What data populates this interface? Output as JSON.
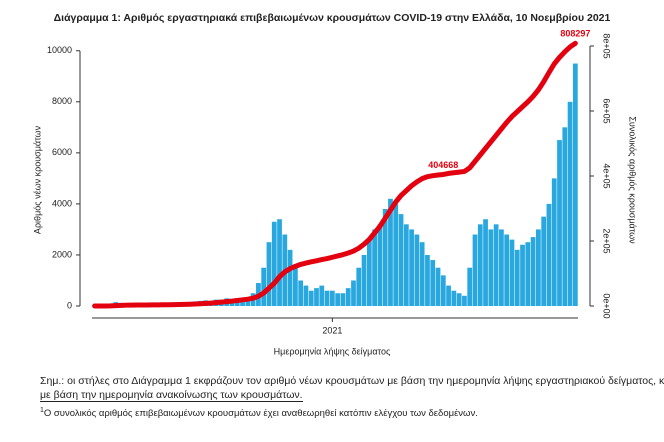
{
  "chart_data": {
    "type": "bar",
    "title": "Διάγραμμα 1: Αριθμός εργαστηριακά επιβεβαιωμένων κρουσμάτων COVID-19 στην Ελλάδα, 10 Νοεμβρίου 2021",
    "x_label": "Ημερομηνία λήψης δείγματος",
    "y_label": "Αριθμός νέων κρουσμάτων",
    "y2_label": "Συνολικός αριθμός κρουσμάτων",
    "categories": [
      null,
      null,
      null,
      null,
      null,
      null,
      null,
      null,
      null,
      null,
      null,
      null,
      null,
      null,
      null,
      null,
      null,
      null,
      null,
      null,
      null,
      null,
      null,
      null,
      null,
      null,
      null,
      null,
      null,
      null,
      null,
      null,
      null,
      null,
      null,
      null,
      null,
      null,
      null,
      null,
      null,
      null,
      null,
      null,
      null,
      null,
      null,
      null,
      null,
      null,
      null,
      null,
      null,
      null,
      null,
      null,
      null,
      null,
      null,
      null,
      null,
      null,
      null,
      null,
      null,
      null,
      null,
      null,
      null,
      null,
      null,
      null,
      null,
      null,
      null,
      null,
      null,
      null,
      null,
      null,
      null,
      null,
      null,
      null,
      null,
      null,
      null,
      null,
      null,
      null,
      null,
      null
    ],
    "xticks": [
      {
        "value": 45,
        "label": "2021"
      }
    ],
    "ylim": [
      0,
      10500
    ],
    "yticks": [
      0,
      2000,
      4000,
      6000,
      8000,
      10000
    ],
    "y2lim": [
      0,
      824600
    ],
    "y2ticks": [
      {
        "value": 0,
        "label": "0e+00"
      },
      {
        "value": 200000,
        "label": "2e+05"
      },
      {
        "value": 400000,
        "label": "4e+05"
      },
      {
        "value": 600000,
        "label": "6e+05"
      },
      {
        "value": 800000,
        "label": "8e+05"
      }
    ],
    "series": [
      {
        "type": "bar",
        "color": "#29a8e0",
        "values": [
          50,
          60,
          80,
          100,
          150,
          120,
          100,
          60,
          40,
          30,
          30,
          40,
          40,
          50,
          60,
          80,
          100,
          120,
          150,
          180,
          200,
          220,
          200,
          250,
          250,
          300,
          280,
          300,
          300,
          320,
          500,
          900,
          1500,
          2500,
          3300,
          3400,
          2800,
          2200,
          1500,
          1000,
          800,
          600,
          700,
          800,
          600,
          600,
          500,
          500,
          700,
          1000,
          1500,
          2000,
          2600,
          3000,
          3200,
          3800,
          4200,
          4000,
          3600,
          3200,
          3000,
          2800,
          2500,
          2000,
          1800,
          1500,
          1200,
          800,
          600,
          500,
          400,
          1500,
          2800,
          3200,
          3400,
          3000,
          3200,
          3000,
          2800,
          2600,
          2200,
          2400,
          2500,
          2700,
          3000,
          3500,
          4000,
          5000,
          6500,
          7000,
          8000,
          9500
        ]
      },
      {
        "type": "line",
        "axis": "y2",
        "color": "#e3000f",
        "values": [
          0,
          0,
          100,
          300,
          1000,
          2000,
          2500,
          2700,
          2900,
          3000,
          3200,
          3400,
          3600,
          3800,
          4000,
          4300,
          4600,
          5000,
          5500,
          6000,
          7000,
          8000,
          9000,
          10500,
          12000,
          13500,
          15000,
          17000,
          19000,
          21000,
          24000,
          30000,
          40000,
          55000,
          70000,
          90000,
          105000,
          115000,
          122000,
          128000,
          132000,
          136000,
          139000,
          143000,
          146000,
          150000,
          154000,
          158000,
          163000,
          169000,
          178000,
          190000,
          205000,
          225000,
          245000,
          270000,
          295000,
          320000,
          340000,
          355000,
          370000,
          382000,
          392000,
          398000,
          401000,
          403000,
          404668,
          408000,
          410000,
          412000,
          414000,
          425000,
          445000,
          465000,
          485000,
          505000,
          525000,
          545000,
          565000,
          583000,
          598000,
          613000,
          628000,
          645000,
          665000,
          690000,
          718000,
          745000,
          765000,
          782000,
          797000,
          808297
        ],
        "value_labels": [
          null,
          null,
          null,
          null,
          null,
          null,
          null,
          null,
          null,
          null,
          null,
          null,
          null,
          null,
          null,
          null,
          null,
          null,
          null,
          null,
          null,
          null,
          null,
          null,
          null,
          null,
          null,
          null,
          null,
          null,
          null,
          null,
          null,
          null,
          null,
          null,
          null,
          null,
          null,
          null,
          null,
          null,
          null,
          null,
          null,
          null,
          null,
          null,
          null,
          null,
          null,
          null,
          null,
          null,
          null,
          null,
          null,
          null,
          null,
          null,
          null,
          null,
          null,
          null,
          null,
          null,
          "404668",
          null,
          null,
          null,
          null,
          null,
          null,
          null,
          null,
          null,
          null,
          null,
          null,
          null,
          null,
          null,
          null,
          null,
          null,
          null,
          null,
          null,
          null,
          null,
          null,
          "808297"
        ]
      }
    ]
  },
  "notes": {
    "line1": "Σημ.: οι στήλες στο Διάγραμμα 1 εκφράζουν τον αριθμό νέων κρουσμάτων με βάση την ημερομηνία λήψης εργαστηριακού δείγματος, και όχι",
    "line2": "με βάση την ημερομηνία ανακοίνωσης των κρουσμάτων.",
    "footnote_mark": "1",
    "footnote": "Ο συνολικός αριθμός επιβεβαιωμένων κρουσμάτων έχει αναθεωρηθεί κατόπιν ελέγχου των δεδομένων."
  }
}
